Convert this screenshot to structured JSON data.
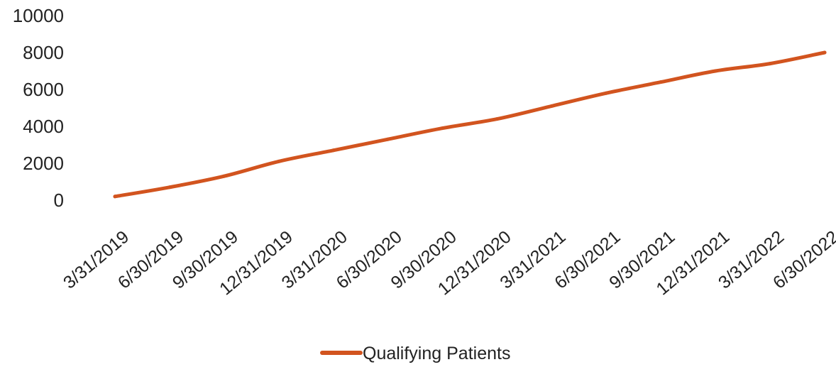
{
  "chart_data": {
    "type": "line",
    "title": "",
    "xlabel": "",
    "ylabel": "",
    "categories": [
      "3/31/2019",
      "6/30/2019",
      "9/30/2019",
      "12/31/2019",
      "3/31/2020",
      "6/30/2020",
      "9/30/2020",
      "12/31/2020",
      "3/31/2021",
      "6/30/2021",
      "9/30/2021",
      "12/31/2021",
      "3/31/2022",
      "6/30/2022"
    ],
    "y_ticks": [
      "0",
      "2000",
      "4000",
      "6000",
      "8000",
      "10000"
    ],
    "ylim": [
      0,
      10000
    ],
    "grid": false,
    "legend_position": "bottom",
    "series": [
      {
        "name": "Qualifying Patients",
        "color": "#d2541f",
        "values": [
          200,
          700,
          1300,
          2100,
          2700,
          3300,
          3900,
          4400,
          5100,
          5800,
          6400,
          7000,
          7400,
          8000
        ]
      }
    ]
  }
}
